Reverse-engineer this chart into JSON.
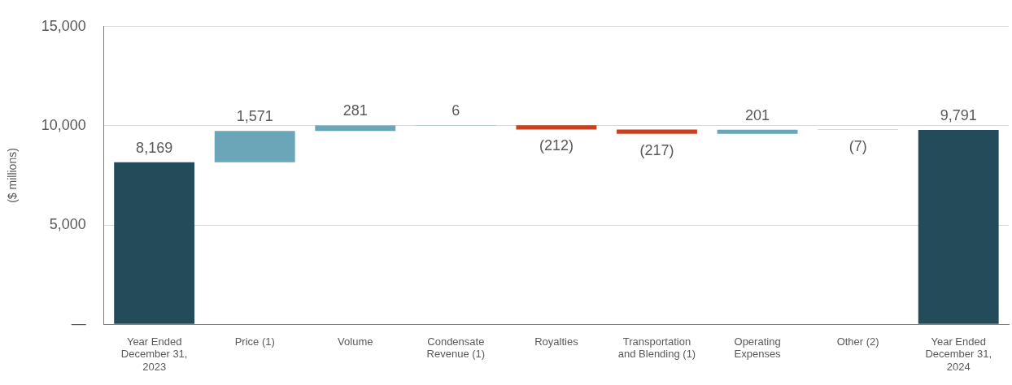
{
  "chart_data": {
    "type": "bar",
    "ylabel": "($ millions)",
    "categories": [
      "Year Ended December 31, 2023",
      "Price (1)",
      "Volume",
      "Condensate Revenue (1)",
      "Royalties",
      "Transportation and Blending (1)",
      "Operating Expenses",
      "Other (2)",
      "Year Ended December 31, 2024"
    ],
    "values": [
      8169,
      1571,
      281,
      6,
      -212,
      -217,
      201,
      -7,
      9791
    ],
    "base": [
      0,
      8169,
      9740,
      10021,
      10027,
      9815,
      9598,
      9799,
      0
    ],
    "colors": [
      "#244b5a",
      "#6aa5b8",
      "#6aa5b8",
      "#6aa5b8",
      "#c8401f",
      "#c8401f",
      "#6aa5b8",
      "#c8401f",
      "#244b5a"
    ],
    "value_labels": [
      "8,169",
      "1,571",
      "281",
      "6",
      "(212)",
      "(217)",
      "201",
      "(7)",
      "9,791"
    ],
    "ylim": [
      0,
      15000
    ],
    "yticks": [
      {
        "value": 0,
        "label": "—"
      },
      {
        "value": 5000,
        "label": "5,000"
      },
      {
        "value": 10000,
        "label": "10,000"
      },
      {
        "value": 15000,
        "label": "15,000"
      }
    ],
    "grid": "y",
    "legend": false
  }
}
